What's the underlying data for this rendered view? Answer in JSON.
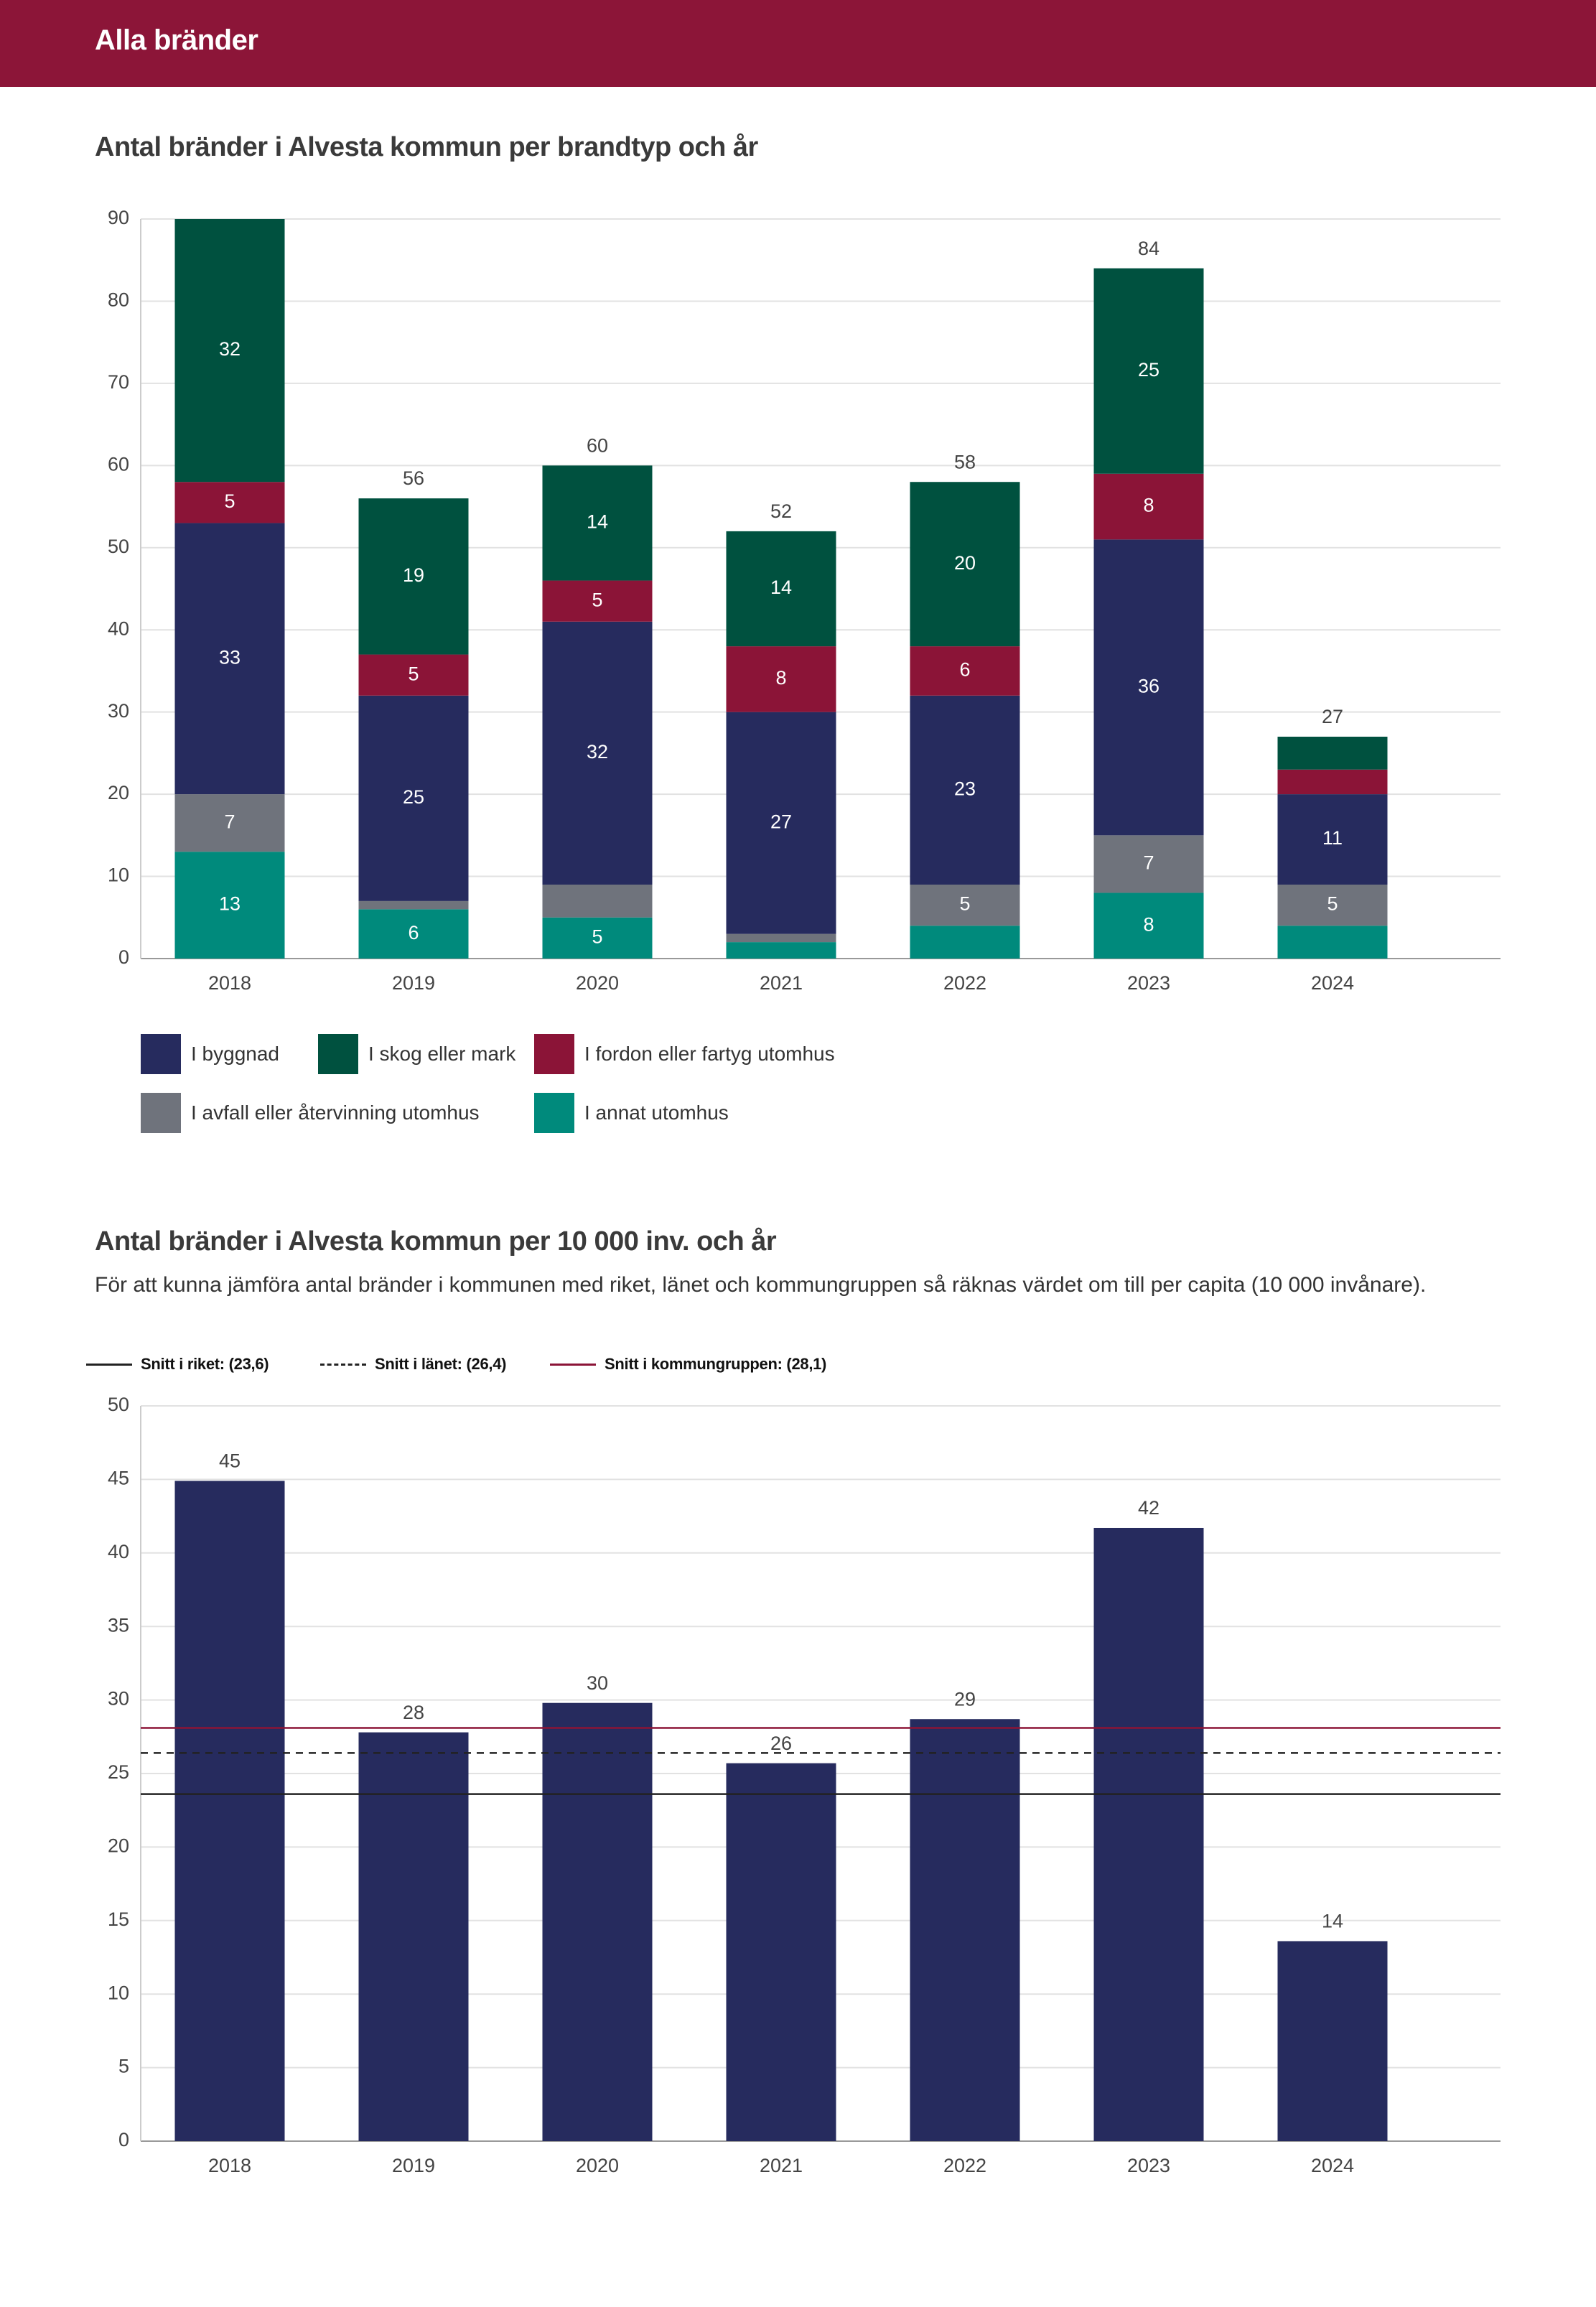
{
  "header": {
    "title": "Alla bränder"
  },
  "colors": {
    "brand": "#8c1538",
    "byggnad": "#262b5e",
    "skog": "#00513f",
    "fordon": "#8b1437",
    "avfall": "#6f737c",
    "annat": "#008a7c",
    "riket_line": "#222222",
    "lanet_line": "#222222",
    "kommungrupp_line": "#8b1437"
  },
  "chart1": {
    "title": "Antal bränder i Alvesta kommun per brandtyp och år",
    "legend": [
      {
        "key": "byggnad",
        "label": "I byggnad",
        "color": "#262b5e"
      },
      {
        "key": "skog",
        "label": "I skog eller mark",
        "color": "#00513f"
      },
      {
        "key": "fordon",
        "label": "I fordon eller fartyg utomhus",
        "color": "#8b1437"
      },
      {
        "key": "avfall",
        "label": "I avfall eller återvinning utomhus",
        "color": "#6f737c"
      },
      {
        "key": "annat",
        "label": "I annat utomhus",
        "color": "#008a7c"
      }
    ]
  },
  "chart2": {
    "title": "Antal bränder i Alvesta kommun per 10 000 inv. och år",
    "subtitle": "För att kunna jämföra antal bränder i kommunen med riket, länet och kommungruppen så räknas värdet om till per capita (10 000 invånare).",
    "reference_legend": [
      {
        "key": "riket",
        "label": "Snitt i riket: (23,6)",
        "style": "solid",
        "color": "#222222"
      },
      {
        "key": "lanet",
        "label": "Snitt i länet: (26,4)",
        "style": "dashed",
        "color": "#222222"
      },
      {
        "key": "kommungrupp",
        "label": "Snitt i kommungruppen: (28,1)",
        "style": "solid",
        "color": "#8b1437"
      }
    ]
  },
  "chart_data": [
    {
      "type": "bar",
      "stacked": true,
      "title": "Antal bränder i Alvesta kommun per brandtyp och år",
      "categories": [
        "2018",
        "2019",
        "2020",
        "2021",
        "2022",
        "2023",
        "2024"
      ],
      "series": [
        {
          "key": "annat",
          "name": "I annat utomhus",
          "values": [
            13,
            6,
            5,
            2,
            4,
            8,
            4
          ],
          "labels": [
            "13",
            "6",
            "5",
            "",
            "",
            "8",
            ""
          ]
        },
        {
          "key": "avfall",
          "name": "I avfall eller återvinning utomhus",
          "values": [
            7,
            1,
            4,
            1,
            5,
            7,
            5
          ],
          "labels": [
            "7",
            "",
            "",
            "",
            "5",
            "7",
            "5"
          ]
        },
        {
          "key": "byggnad",
          "name": "I byggnad",
          "values": [
            33,
            25,
            32,
            27,
            23,
            36,
            11
          ],
          "labels": [
            "33",
            "25",
            "32",
            "27",
            "23",
            "36",
            "11"
          ]
        },
        {
          "key": "fordon",
          "name": "I fordon eller fartyg utomhus",
          "values": [
            5,
            5,
            5,
            8,
            6,
            8,
            3
          ],
          "labels": [
            "5",
            "5",
            "5",
            "8",
            "6",
            "8",
            ""
          ]
        },
        {
          "key": "skog",
          "name": "I skog eller mark",
          "values": [
            32,
            19,
            14,
            14,
            20,
            25,
            4
          ],
          "labels": [
            "32",
            "19",
            "14",
            "14",
            "20",
            "25",
            ""
          ]
        }
      ],
      "totals": [
        90,
        56,
        60,
        52,
        58,
        84,
        27
      ],
      "total_labels": [
        "",
        "56",
        "60",
        "52",
        "58",
        "84",
        "27"
      ],
      "ylim": [
        0,
        90
      ],
      "yticks": [
        0,
        10,
        20,
        30,
        40,
        50,
        60,
        70,
        80,
        90
      ],
      "grid": true
    },
    {
      "type": "bar",
      "title": "Antal bränder i Alvesta kommun per 10 000 inv. och år",
      "categories": [
        "2018",
        "2019",
        "2020",
        "2021",
        "2022",
        "2023",
        "2024"
      ],
      "values": [
        44.9,
        27.8,
        29.8,
        25.7,
        28.7,
        41.7,
        13.6
      ],
      "value_labels": [
        "45",
        "28",
        "30",
        "26",
        "29",
        "42",
        "14"
      ],
      "reference_lines": [
        {
          "name": "Snitt i riket",
          "value": 23.6
        },
        {
          "name": "Snitt i länet",
          "value": 26.4
        },
        {
          "name": "Snitt i kommungruppen",
          "value": 28.1
        }
      ],
      "ylim": [
        0,
        50
      ],
      "yticks": [
        0,
        5,
        10,
        15,
        20,
        25,
        30,
        35,
        40,
        45,
        50
      ],
      "grid": true
    }
  ]
}
